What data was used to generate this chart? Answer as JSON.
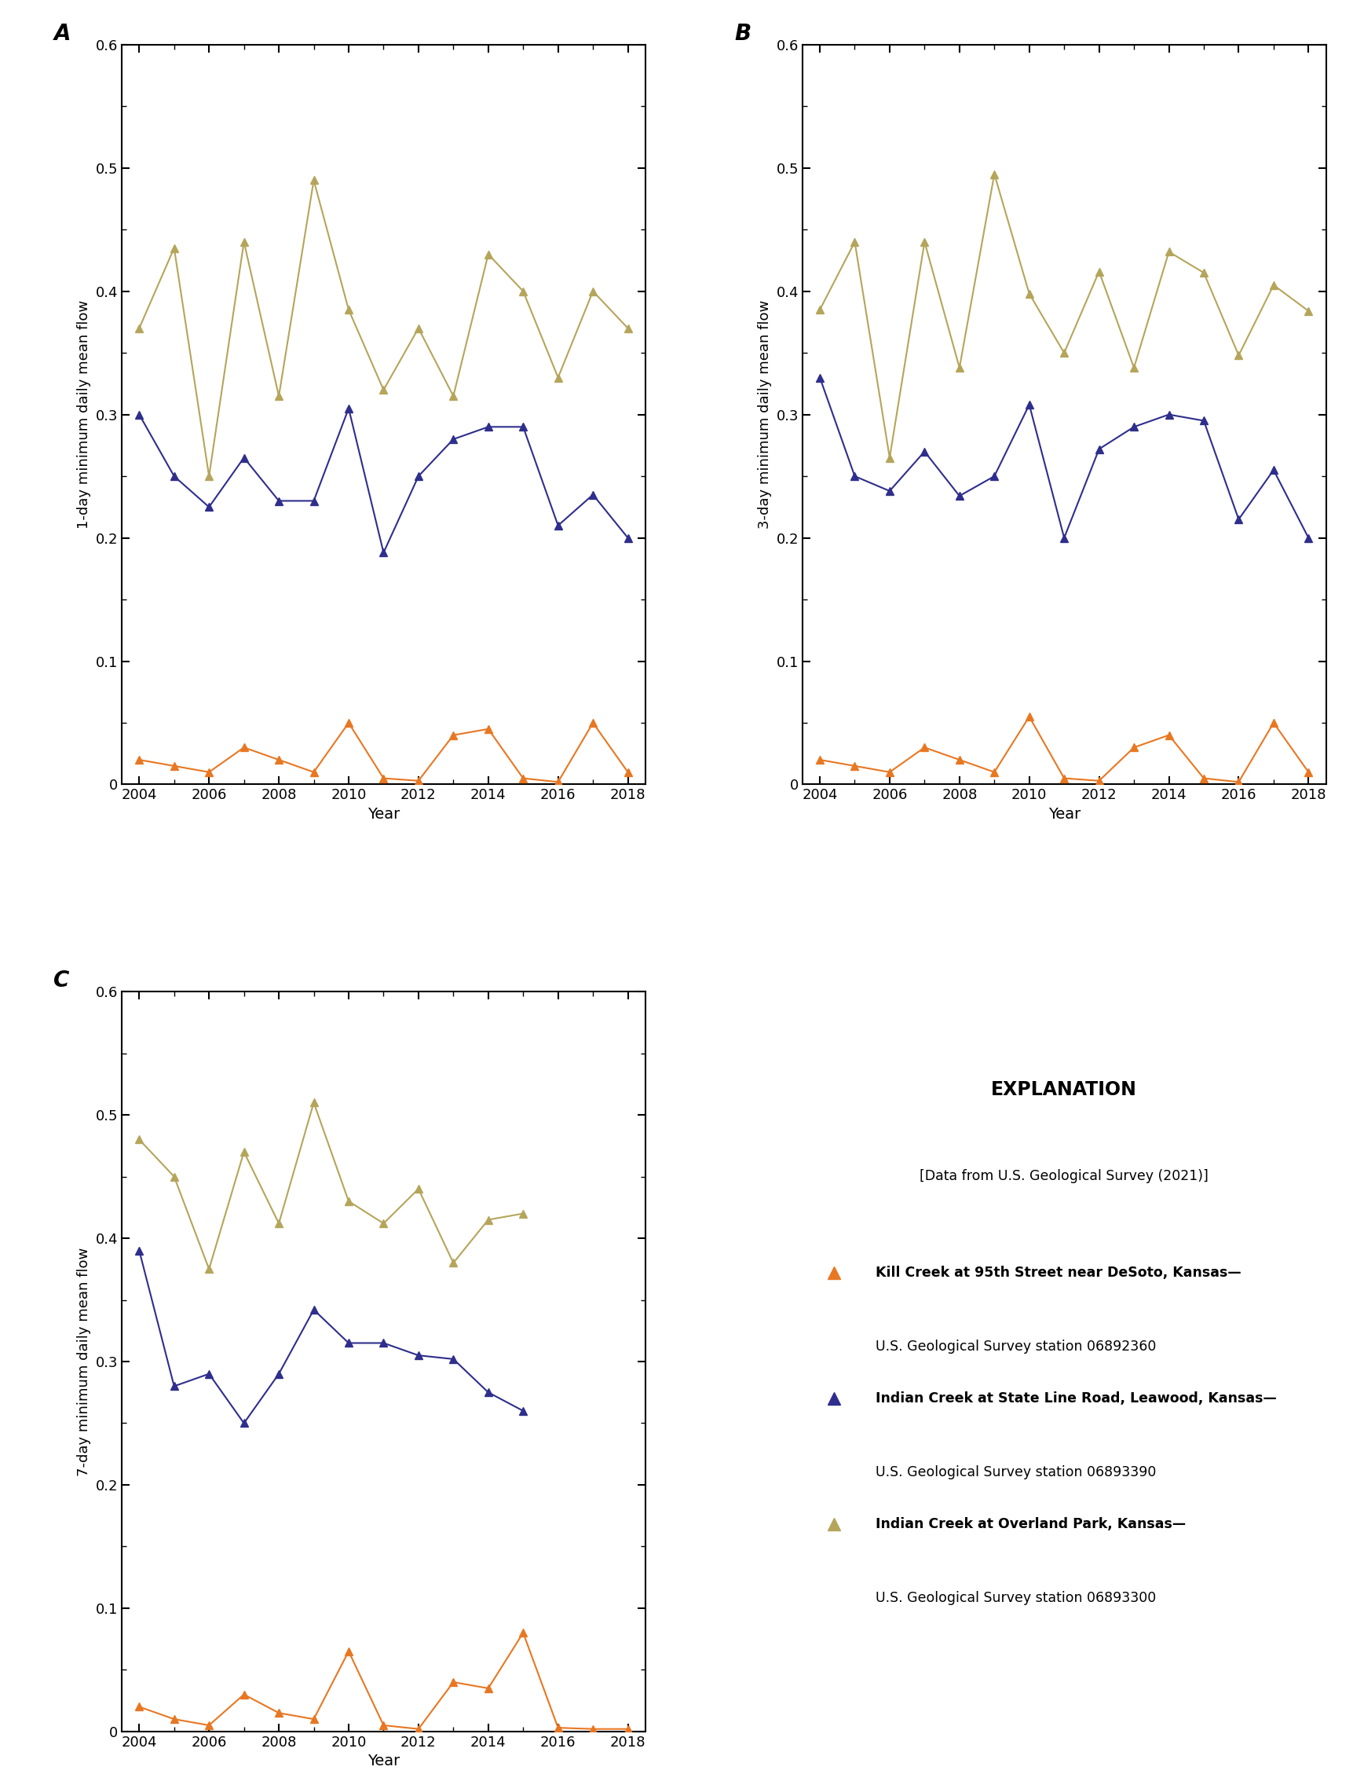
{
  "years": [
    2004,
    2005,
    2006,
    2007,
    2008,
    2009,
    2010,
    2011,
    2012,
    2013,
    2014,
    2015,
    2016,
    2017,
    2018
  ],
  "panel_A": {
    "label": "A",
    "ylabel": "1-day minimum daily mean flow",
    "ylim": [
      0,
      0.6
    ],
    "yticks": [
      0,
      0.1,
      0.2,
      0.3,
      0.4,
      0.5,
      0.6
    ],
    "kill_creek": [
      0.02,
      0.015,
      0.01,
      0.03,
      0.02,
      0.01,
      0.05,
      0.005,
      0.003,
      0.04,
      0.045,
      0.005,
      0.002,
      0.05,
      0.01
    ],
    "indian_state": [
      0.3,
      0.25,
      0.225,
      0.265,
      0.23,
      0.23,
      0.305,
      0.188,
      0.25,
      0.28,
      0.29,
      0.29,
      0.21,
      0.235,
      0.2
    ],
    "indian_overland": [
      0.37,
      0.435,
      0.25,
      0.44,
      0.315,
      0.49,
      0.385,
      0.32,
      0.37,
      0.315,
      0.43,
      0.4,
      0.33,
      0.4,
      0.37
    ]
  },
  "panel_B": {
    "label": "B",
    "ylabel": "3-day minimum daily mean flow",
    "ylim": [
      0,
      0.6
    ],
    "yticks": [
      0,
      0.1,
      0.2,
      0.3,
      0.4,
      0.5,
      0.6
    ],
    "kill_creek": [
      0.02,
      0.015,
      0.01,
      0.03,
      0.02,
      0.01,
      0.055,
      0.005,
      0.003,
      0.03,
      0.04,
      0.005,
      0.002,
      0.05,
      0.01
    ],
    "indian_state": [
      0.33,
      0.25,
      0.238,
      0.27,
      0.234,
      0.25,
      0.308,
      0.2,
      0.272,
      0.29,
      0.3,
      0.295,
      0.215,
      0.255,
      0.2
    ],
    "indian_overland": [
      0.385,
      0.44,
      0.265,
      0.44,
      0.338,
      0.495,
      0.398,
      0.35,
      0.416,
      0.338,
      0.432,
      0.415,
      0.348,
      0.405,
      0.384
    ]
  },
  "panel_C": {
    "label": "C",
    "ylabel": "7-day minimum daily mean flow",
    "ylim": [
      0,
      0.6
    ],
    "yticks": [
      0,
      0.1,
      0.2,
      0.3,
      0.4,
      0.5,
      0.6
    ],
    "kill_creek": [
      0.02,
      0.01,
      0.005,
      0.03,
      0.015,
      0.01,
      0.065,
      0.005,
      0.002,
      0.04,
      0.035,
      0.08,
      0.003,
      0.002,
      0.002
    ],
    "indian_state": [
      0.39,
      0.28,
      0.29,
      0.25,
      0.29,
      0.342,
      0.315,
      0.315,
      0.305,
      0.302,
      0.275,
      0.26,
      null,
      null,
      null
    ],
    "indian_overland": [
      0.48,
      0.45,
      0.375,
      0.47,
      0.412,
      0.51,
      0.43,
      0.412,
      0.44,
      0.38,
      0.415,
      0.42,
      null,
      null,
      null
    ]
  },
  "colors": {
    "kill_creek": "#E87722",
    "indian_state": "#2E2E8C",
    "indian_overland": "#B5A55A"
  },
  "legend": {
    "title": "EXPLANATION",
    "subtitle": "[Data from U.S. Geological Survey (2021)]",
    "kill_creek_label1": "Kill Creek at 95th Street near DeSoto, Kansas—",
    "kill_creek_label2": "U.S. Geological Survey station 06892360",
    "indian_state_label1": "Indian Creek at State Line Road, Leawood, Kansas—",
    "indian_state_label2": "U.S. Geological Survey station 06893390",
    "indian_overland_label1": "Indian Creek at Overland Park, Kansas—",
    "indian_overland_label2": "U.S. Geological Survey station 06893300"
  }
}
